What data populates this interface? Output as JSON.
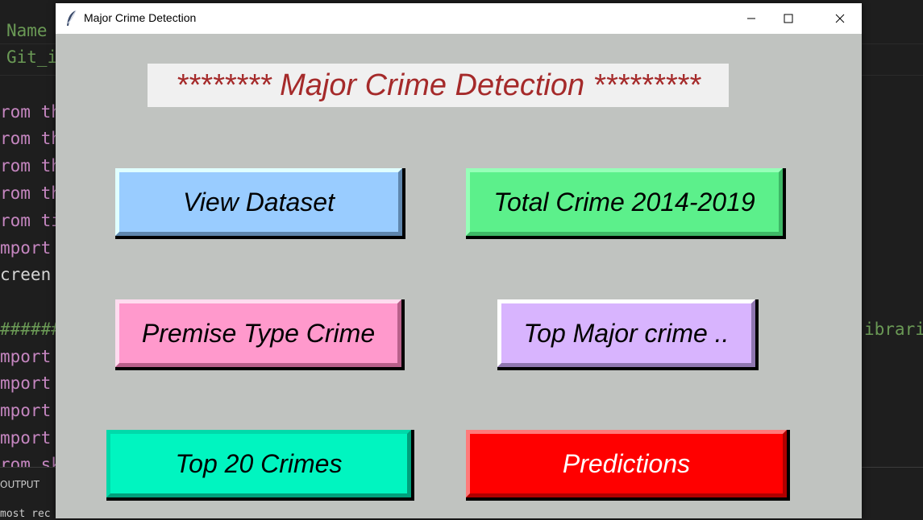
{
  "window": {
    "title": "Major Crime Detection"
  },
  "heading": "******** Major Crime Detection *********",
  "buttons": {
    "view_dataset": "View Dataset",
    "total_crime": "Total Crime 2014-2019",
    "premise_type": "Premise Type Crime",
    "top_major": "Top Major crime ..",
    "top20": "Top 20 Crimes",
    "predictions": "Predictions"
  },
  "editor": {
    "tab_name": "Name",
    "tab_git": "Git_i",
    "lines_left": [
      "rom th",
      "rom th",
      "rom th",
      "rom th",
      "rom ti",
      "mport",
      "creen",
      "######",
      "mport",
      "mport",
      "mport",
      "mport",
      "rom sk"
    ],
    "right_fragment": "ibrari",
    "panel_tab": "OUTPUT",
    "terminal_text": "most rec"
  },
  "colors": {
    "heading_text": "#a52a2a",
    "window_bg": "#c0c3c0"
  }
}
